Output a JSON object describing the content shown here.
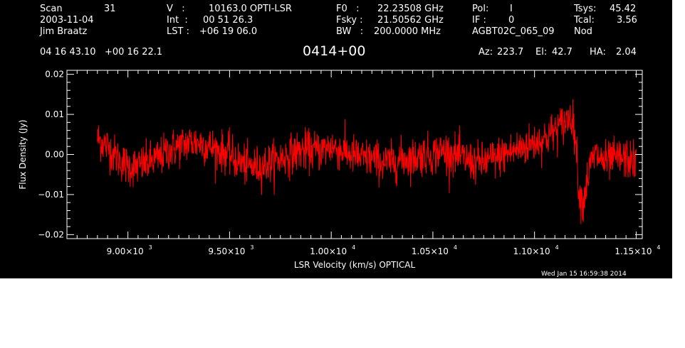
{
  "header": {
    "scan_label": "Scan",
    "scan_value": "31",
    "date": "2003-11-04",
    "observer": "Jim Braatz",
    "velocity_label": "V   :",
    "velocity_value": "10163.0 OPTI-LSR",
    "int_label": "Int  :",
    "int_value": "00 51 26.3",
    "lst_label": "LST :",
    "lst_value": "+06 19 06.0",
    "f0_label": "F0   :",
    "f0_value": "22.23508 GHz",
    "fsky_label": "Fsky :",
    "fsky_value": "21.50562 GHz",
    "bw_label": "BW   :",
    "bw_value": "200.0000 MHz",
    "pol_label": "Pol:",
    "pol_value": "I",
    "if_label": "IF :",
    "if_value": "0",
    "project": "AGBT02C_065_09",
    "tsys_label": "Tsys:",
    "tsys_value": "45.42",
    "tcal_label": "Tcal:",
    "tcal_value": "3.56",
    "mode": "Nod",
    "coords": "04 16 43.10   +00 16 22.1",
    "source": "0414+00",
    "az_label": "Az:",
    "az_value": "223.7",
    "el_label": "El:",
    "el_value": "42.7",
    "ha_label": "HA:",
    "ha_value": "2.04"
  },
  "timestamp": "Wed Jan 15 16:59:38 2014",
  "colors": {
    "background": "#000000",
    "axes": "#ffffff",
    "series": "#ff0000"
  },
  "chart_data": {
    "type": "line",
    "title": "0414+00",
    "xlabel": "LSR Velocity (km/s) OPTICAL",
    "ylabel": "Flux Density (Jy)",
    "xlim": [
      8700,
      11530
    ],
    "ylim": [
      -0.021,
      0.021
    ],
    "xticks": [
      9000,
      9500,
      10000,
      10500,
      11000,
      11500
    ],
    "xtick_labels": [
      "9.00×10",
      "9.50×10",
      "1.00×10",
      "1.05×10",
      "1.10×10",
      "1.15×10"
    ],
    "xtick_exponents": [
      "3",
      "3",
      "4",
      "4",
      "4",
      "4"
    ],
    "yticks": [
      -0.02,
      -0.01,
      0.0,
      0.01,
      0.02
    ],
    "ytick_labels": [
      "−0.02",
      "−0.01",
      "0.00",
      "0.01",
      "0.02"
    ],
    "noise_sigma": 0.0025,
    "series": [
      {
        "x": [
          8850,
          8900,
          8950,
          9000,
          9050,
          9100,
          9150,
          9200,
          9250,
          9300,
          9350,
          9400,
          9450,
          9500,
          9550,
          9600,
          9650,
          9700,
          9750,
          9800,
          9850,
          9900,
          9950,
          10000,
          10050,
          10100,
          10150,
          10200,
          10250,
          10300,
          10350,
          10400,
          10450,
          10500,
          10550,
          10600,
          10650,
          10700,
          10750,
          10800,
          10850,
          10900,
          10950,
          11000,
          11050,
          11100,
          11150,
          11180,
          11200,
          11210,
          11220,
          11240,
          11260,
          11280,
          11300,
          11350,
          11400,
          11450,
          11500
        ],
        "y": [
          0.004,
          0.002,
          -0.001,
          -0.003,
          -0.003,
          -0.002,
          -0.001,
          0.001,
          0.002,
          0.003,
          0.003,
          0.002,
          0.001,
          0.0,
          -0.002,
          -0.003,
          -0.003,
          -0.002,
          -0.001,
          0.0,
          0.001,
          0.001,
          0.001,
          0.002,
          0.001,
          0.0,
          -0.001,
          -0.001,
          -0.002,
          -0.002,
          -0.001,
          -0.001,
          0.0,
          0.0,
          0.001,
          0.0,
          -0.001,
          -0.002,
          -0.002,
          -0.001,
          0.0,
          0.001,
          0.002,
          0.003,
          0.004,
          0.006,
          0.008,
          0.01,
          0.005,
          -0.002,
          -0.01,
          -0.012,
          -0.006,
          -0.002,
          0.0,
          -0.002,
          -0.001,
          -0.001,
          -0.002
        ]
      }
    ]
  }
}
